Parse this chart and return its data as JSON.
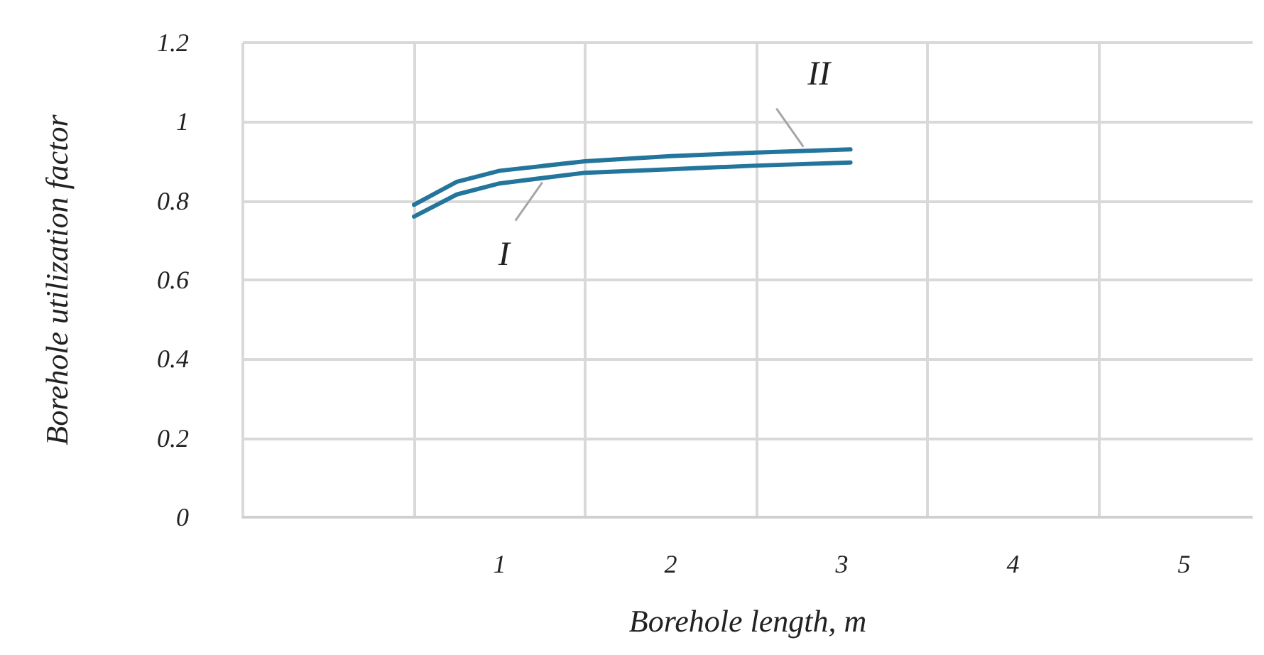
{
  "chart_data": {
    "type": "line",
    "xlabel": "Borehole length, m",
    "ylabel": "Borehole utilization factor",
    "xlim": [
      -0.5,
      5.4
    ],
    "ylim": [
      0,
      1.2
    ],
    "xticks": [
      {
        "value": -0.5,
        "label": null
      },
      {
        "value": 0.5,
        "label": null
      },
      1,
      {
        "value": 1.5,
        "label": null
      },
      2,
      {
        "value": 2.5,
        "label": null
      },
      3,
      {
        "value": 3.5,
        "label": null
      },
      4,
      {
        "value": 4.5,
        "label": null
      },
      5
    ],
    "yticks": [
      0,
      0.2,
      0.4,
      0.6,
      0.8,
      1,
      1.2
    ],
    "grid": true,
    "legend": false,
    "marker": "none",
    "line_style": "solid",
    "series": [
      {
        "name": "I",
        "color": "#23759c",
        "x": [
          0.5,
          0.75,
          1,
          1.5,
          2,
          2.5,
          3.05
        ],
        "values": [
          0.76,
          0.816,
          0.844,
          0.871,
          0.88,
          0.889,
          0.897
        ]
      },
      {
        "name": "II",
        "color": "#23759c",
        "x": [
          0.5,
          0.75,
          1,
          1.5,
          2,
          2.5,
          3.05
        ],
        "values": [
          0.79,
          0.848,
          0.876,
          0.9,
          0.913,
          0.922,
          0.93
        ]
      }
    ]
  }
}
